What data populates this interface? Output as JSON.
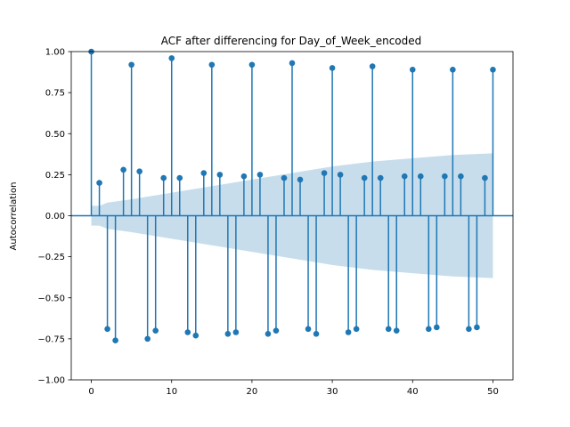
{
  "chart_data": {
    "type": "stem",
    "title": "ACF after differencing for Day_of_Week_encoded",
    "xlabel": "",
    "ylabel": "Autocorrelation",
    "xlim": [
      -2.5,
      52.5
    ],
    "ylim": [
      -1.0,
      1.0
    ],
    "x_ticks": [
      0,
      10,
      20,
      30,
      40,
      50
    ],
    "y_ticks": [
      -1.0,
      -0.75,
      -0.5,
      -0.25,
      0.0,
      0.25,
      0.5,
      0.75,
      1.0
    ],
    "x_tick_labels": [
      "0",
      "10",
      "20",
      "30",
      "40",
      "50"
    ],
    "y_tick_labels": [
      "−1.00",
      "−0.75",
      "−0.50",
      "−0.25",
      "0.00",
      "0.25",
      "0.50",
      "0.75",
      "1.00"
    ],
    "lags": [
      0,
      1,
      2,
      3,
      4,
      5,
      6,
      7,
      8,
      9,
      10,
      11,
      12,
      13,
      14,
      15,
      16,
      17,
      18,
      19,
      20,
      21,
      22,
      23,
      24,
      25,
      26,
      27,
      28,
      29,
      30,
      31,
      32,
      33,
      34,
      35,
      36,
      37,
      38,
      39,
      40,
      41,
      42,
      43,
      44,
      45,
      46,
      47,
      48,
      49,
      50
    ],
    "values": [
      1.0,
      0.2,
      -0.69,
      -0.76,
      0.28,
      0.92,
      0.27,
      -0.75,
      -0.7,
      0.23,
      0.96,
      0.23,
      -0.71,
      -0.73,
      0.26,
      0.92,
      0.25,
      -0.72,
      -0.71,
      0.24,
      0.92,
      0.25,
      -0.72,
      -0.7,
      0.23,
      0.93,
      0.22,
      -0.69,
      -0.72,
      0.26,
      0.9,
      0.25,
      -0.71,
      -0.69,
      0.23,
      0.91,
      0.23,
      -0.69,
      -0.7,
      0.24,
      0.89,
      0.24,
      -0.69,
      -0.68,
      0.24,
      0.89,
      0.24,
      -0.69,
      -0.68,
      0.23,
      0.89
    ],
    "confidence_band": {
      "lags": [
        0,
        1,
        2,
        5,
        10,
        15,
        20,
        25,
        30,
        35,
        40,
        45,
        50
      ],
      "upper": [
        0.06,
        0.06,
        0.08,
        0.1,
        0.14,
        0.18,
        0.22,
        0.26,
        0.3,
        0.33,
        0.35,
        0.37,
        0.38
      ],
      "lower": [
        -0.06,
        -0.06,
        -0.08,
        -0.1,
        -0.14,
        -0.18,
        -0.22,
        -0.26,
        -0.3,
        -0.33,
        -0.35,
        -0.37,
        -0.38
      ]
    },
    "colors": {
      "stem": "#1f77b4",
      "band": "#1f77b4"
    },
    "grid": false,
    "legend": "none"
  }
}
